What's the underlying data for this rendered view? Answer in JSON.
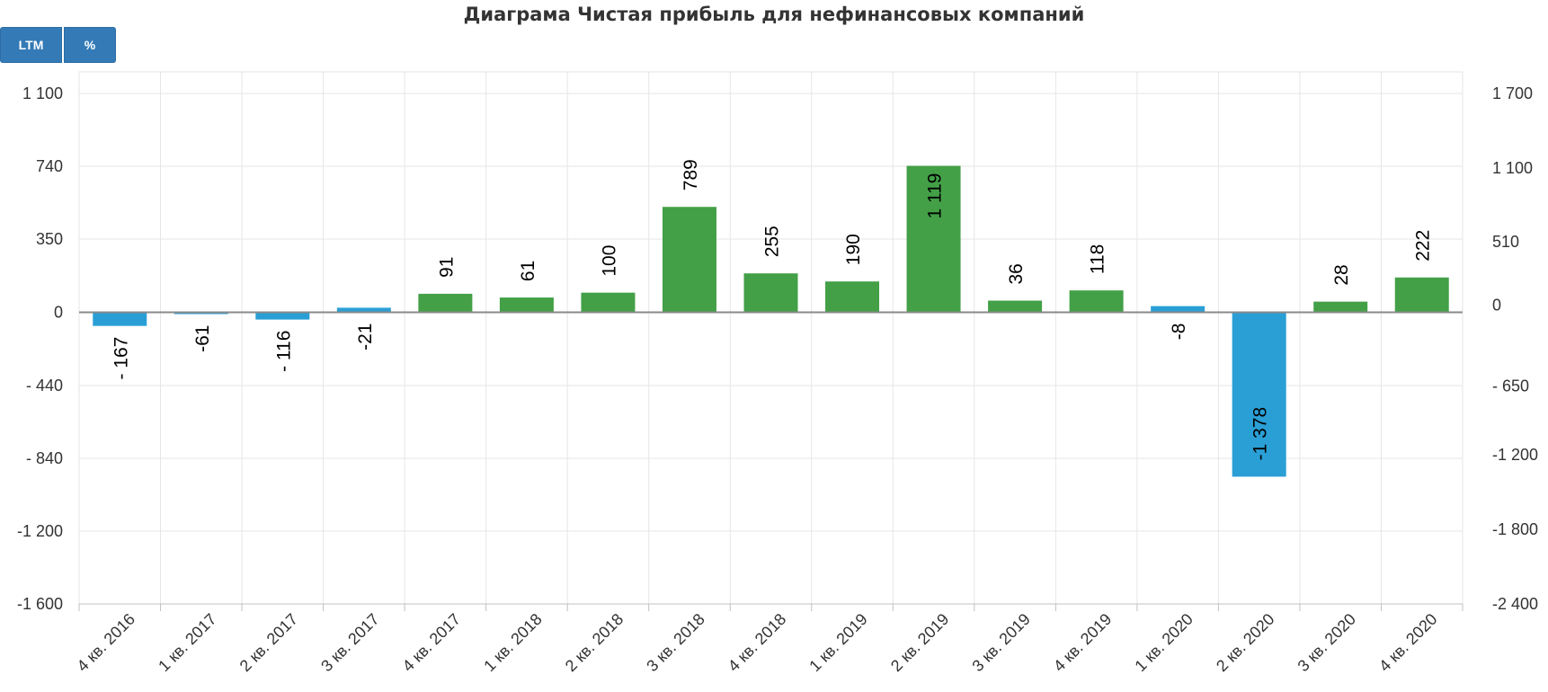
{
  "toolbar": {
    "ltm_label": "LTM",
    "percent_label": "%"
  },
  "chart_data": {
    "type": "bar",
    "title": "Диаграма  Чистая прибыль для нефинансовых компаний",
    "categories": [
      "4 кв. 2016",
      "1 кв. 2017",
      "2 кв. 2017",
      "3 кв. 2017",
      "4 кв. 2017",
      "1 кв. 2018",
      "2 кв. 2018",
      "3 кв. 2018",
      "4 кв. 2018",
      "1 кв. 2019",
      "2 кв. 2019",
      "3 кв. 2019",
      "4 кв. 2019",
      "1 кв. 2020",
      "2 кв. 2020",
      "3 кв. 2020",
      "4 кв. 2020"
    ],
    "series": [
      {
        "values": [
          -167,
          -61,
          -116,
          -21,
          91,
          61,
          100,
          789,
          255,
          190,
          1119,
          36,
          118,
          -8,
          -1378,
          28,
          222
        ],
        "value_labels": [
          "- 167",
          "-61",
          "- 116",
          "-21",
          "91",
          "61",
          "100",
          "789",
          "255",
          "190",
          "1 119",
          "36",
          "118",
          "-8",
          "-1 378",
          "28",
          "222"
        ]
      }
    ],
    "left_axis": {
      "ticks": [
        1100,
        740,
        350,
        0,
        -440,
        -840,
        -1200,
        -1600
      ],
      "tick_labels": [
        "1 100",
        "740",
        "350",
        "0",
        "- 440",
        "- 840",
        "-1 200",
        "-1 600"
      ]
    },
    "right_axis": {
      "range": [
        -2400,
        1700
      ],
      "ticks": [
        1700,
        1100,
        510,
        0,
        -650,
        -1200,
        -1800,
        -2400
      ],
      "tick_labels": [
        "1 700",
        "1 100",
        "510",
        "0",
        "- 650",
        "-1 200",
        "-1 800",
        "-2 400"
      ]
    },
    "colors": {
      "positive": "#43a047",
      "negative": "#2a9fd6"
    },
    "grid": true
  }
}
